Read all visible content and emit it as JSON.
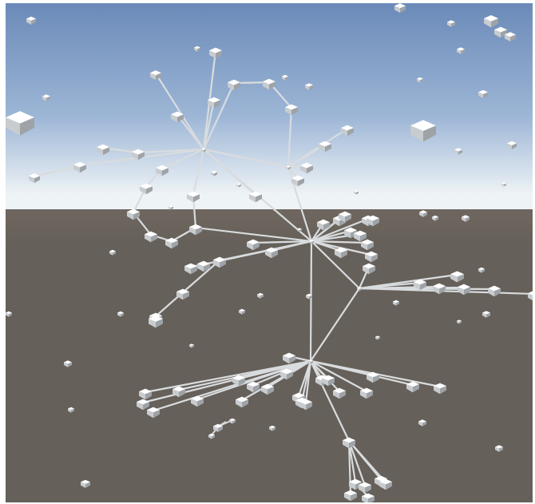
{
  "viewport": {
    "sky_top_color": "#6b8ab8",
    "sky_mid_color": "#9db6d6",
    "horizon_color": "#eef3f6",
    "ground_top_color": "#6f675f",
    "ground_color": "#66605a",
    "edge_color": "#d9dcde",
    "cube_top_color": "#ffffff",
    "cube_side_color": "#c8cccf",
    "cube_dark_color": "#9ea3a7"
  }
}
